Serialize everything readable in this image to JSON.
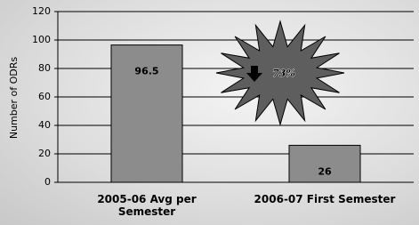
{
  "chart_data": {
    "type": "bar",
    "y_label": "Number of ODRs",
    "categories": [
      "2005-06 Avg per Semester",
      "2006-07 First Semester"
    ],
    "values": [
      96.5,
      26
    ],
    "color": "#8c8c8c",
    "ylim": [
      0,
      120
    ],
    "yticks": [
      0,
      20,
      40,
      60,
      80,
      100,
      120
    ],
    "grid": true,
    "annotation": "73%"
  }
}
